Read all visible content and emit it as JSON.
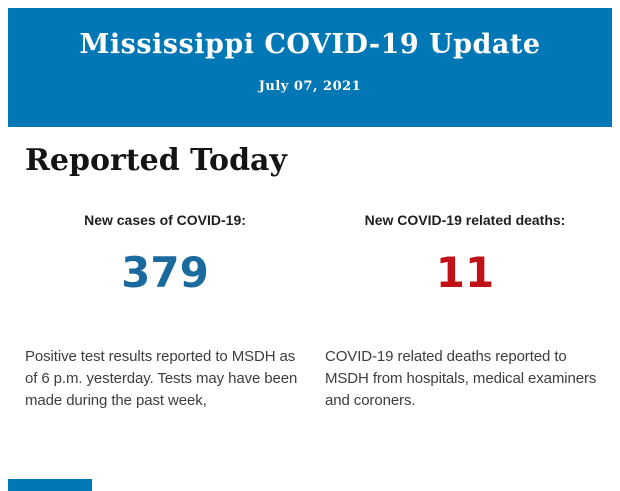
{
  "header": {
    "title": "Mississippi COVID-19 Update",
    "date": "July 07, 2021",
    "background_color": "#0277b5",
    "text_color": "#ffffff"
  },
  "section": {
    "heading": "Reported Today"
  },
  "stats": {
    "cases": {
      "label": "New cases of COVID-19:",
      "value": "379",
      "value_color": "#1b6a9e",
      "description": "Positive test results reported to MSDH as of 6 p.m. yesterday. Tests may have been made during the past week,"
    },
    "deaths": {
      "label": "New COVID-19 related deaths:",
      "value": "11",
      "value_color": "#c01217",
      "description": "COVID-19 related deaths reported to MSDH from hospitals, medical examiners and coroners."
    }
  },
  "footer": {
    "next_section_band_color": "#0277b5"
  }
}
